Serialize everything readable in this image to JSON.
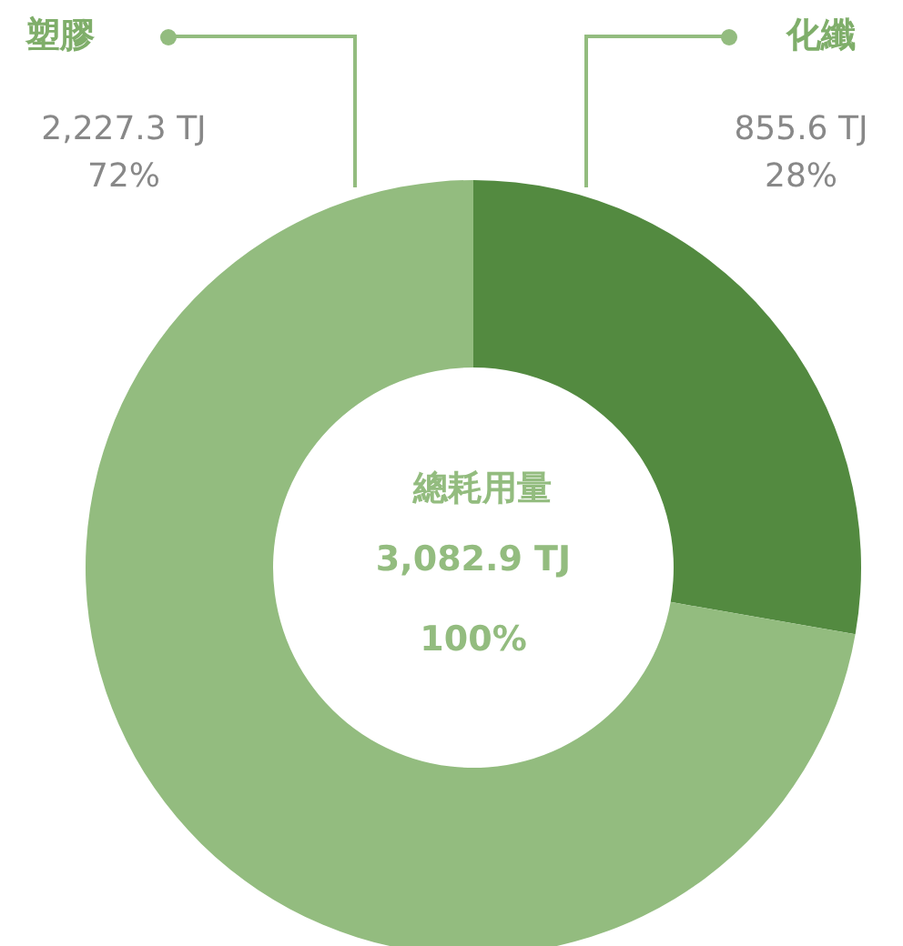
{
  "chart_data": {
    "type": "donut",
    "title": "總耗用量",
    "categories": [
      "化纖",
      "塑膠"
    ],
    "values": [
      855.6,
      2227.3
    ],
    "colors": [
      "#538a40",
      "#93bc7f"
    ],
    "value_labels": [
      "855.6 TJ\n28%",
      "2,227.3 TJ\n72%"
    ],
    "annotations": [
      "3,082.9 TJ",
      "100%"
    ],
    "legend": false
  }
}
